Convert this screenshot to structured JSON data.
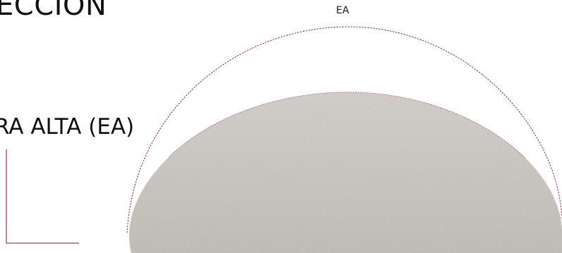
{
  "heading": "ECCION",
  "measurement_label": "RA ALTA (EA)",
  "arc_label": "EA",
  "colors": {
    "text": "#111111",
    "accent_line": "#a4426a",
    "dotted_arc": "#a0344f",
    "shape_fill": "#d3d0cb"
  }
}
